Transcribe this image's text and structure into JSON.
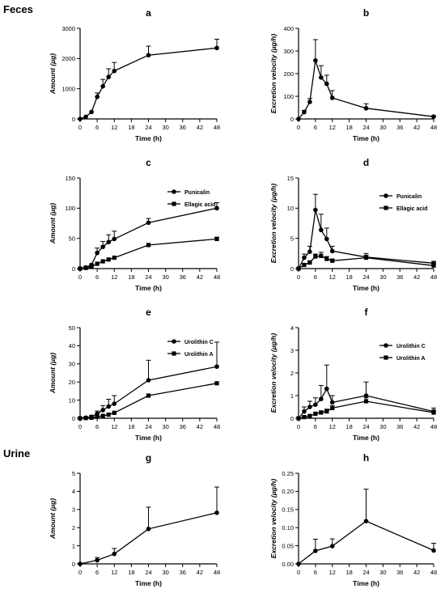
{
  "section_labels": {
    "feces": "Feces",
    "urine": "Urine"
  },
  "chart_data": [
    {
      "type": "line",
      "panel_label": "a",
      "xlabel": "Time (h)",
      "ylabel": "Amount (µg)",
      "xlim": [
        0,
        48
      ],
      "ylim": [
        0,
        3000
      ],
      "xticks": [
        0,
        6,
        12,
        18,
        24,
        30,
        36,
        42,
        48
      ],
      "yticks": [
        0,
        1000,
        2000,
        3000
      ],
      "series": [
        {
          "marker": "circle",
          "x": [
            0,
            2,
            4,
            6,
            8,
            10,
            12,
            24,
            48
          ],
          "y": [
            0,
            70,
            230,
            730,
            1080,
            1390,
            1590,
            2110,
            2350
          ],
          "err": [
            0,
            0,
            0,
            130,
            230,
            270,
            280,
            300,
            290
          ]
        }
      ]
    },
    {
      "type": "line",
      "panel_label": "b",
      "xlabel": "Time (h)",
      "ylabel": "Excretion velocity (µg/h)",
      "xlim": [
        0,
        48
      ],
      "ylim": [
        0,
        400
      ],
      "xticks": [
        0,
        6,
        12,
        18,
        24,
        30,
        36,
        42,
        48
      ],
      "yticks": [
        0,
        100,
        200,
        300,
        400
      ],
      "series": [
        {
          "marker": "circle",
          "x": [
            0,
            2,
            4,
            6,
            8,
            10,
            12,
            24,
            48
          ],
          "y": [
            0,
            30,
            75,
            258,
            183,
            155,
            93,
            47,
            10
          ],
          "err": [
            0,
            8,
            15,
            92,
            52,
            38,
            32,
            20,
            5
          ]
        }
      ]
    },
    {
      "type": "line",
      "panel_label": "c",
      "xlabel": "Time (h)",
      "ylabel": "Amount (µg)",
      "xlim": [
        0,
        48
      ],
      "ylim": [
        0,
        150
      ],
      "xticks": [
        0,
        6,
        12,
        18,
        24,
        30,
        36,
        42,
        48
      ],
      "yticks": [
        0,
        50,
        100,
        150
      ],
      "legend": "top-left",
      "series": [
        {
          "name": "Punicalin",
          "marker": "circle",
          "x": [
            0,
            2,
            4,
            6,
            8,
            10,
            12,
            24,
            48
          ],
          "y": [
            0,
            2,
            6,
            26,
            36,
            44,
            49,
            76,
            100
          ],
          "err": [
            0,
            1,
            2,
            8,
            9,
            12,
            13,
            7,
            9
          ]
        },
        {
          "name": "Ellagic acid",
          "marker": "square",
          "x": [
            0,
            2,
            4,
            6,
            8,
            10,
            12,
            24,
            48
          ],
          "y": [
            0,
            1,
            3,
            8,
            12,
            15,
            18,
            39,
            49
          ],
          "err": [
            0,
            0,
            0,
            0,
            0,
            0,
            0,
            0,
            3
          ]
        }
      ]
    },
    {
      "type": "line",
      "panel_label": "d",
      "xlabel": "Time (h)",
      "ylabel": "Excretion velocity (µg/h)",
      "xlim": [
        0,
        48
      ],
      "ylim": [
        0,
        15
      ],
      "xticks": [
        0,
        6,
        12,
        18,
        24,
        30,
        36,
        42,
        48
      ],
      "yticks": [
        0,
        5,
        10,
        15
      ],
      "legend": "top-right",
      "series": [
        {
          "name": "Punicalin",
          "marker": "circle",
          "x": [
            0,
            2,
            4,
            6,
            8,
            10,
            12,
            24,
            48
          ],
          "y": [
            0,
            1.8,
            2.8,
            9.7,
            6.4,
            4.9,
            2.9,
            1.9,
            0.9
          ],
          "err": [
            0,
            0.6,
            0.9,
            2.6,
            2.6,
            1.8,
            0.8,
            0.6,
            0.3
          ]
        },
        {
          "name": "Ellagic acid",
          "marker": "square",
          "x": [
            0,
            2,
            4,
            6,
            8,
            10,
            12,
            24,
            48
          ],
          "y": [
            0,
            0.6,
            1.0,
            2.0,
            2.1,
            1.6,
            1.3,
            1.8,
            0.5
          ],
          "err": [
            0,
            0.2,
            0.3,
            0.4,
            0.6,
            0.4,
            0.3,
            0.4,
            0.2
          ]
        }
      ]
    },
    {
      "type": "line",
      "panel_label": "e",
      "xlabel": "Time (h)",
      "ylabel": "Amount (µg)",
      "xlim": [
        0,
        48
      ],
      "ylim": [
        0,
        50
      ],
      "xticks": [
        0,
        6,
        12,
        18,
        24,
        30,
        36,
        42,
        48
      ],
      "yticks": [
        0,
        10,
        20,
        30,
        40,
        50
      ],
      "legend": "top-left",
      "series": [
        {
          "name": "Urolithin C",
          "marker": "circle",
          "x": [
            0,
            2,
            4,
            6,
            8,
            10,
            12,
            24,
            48
          ],
          "y": [
            0,
            0.3,
            0.8,
            2.5,
            4.5,
            6.5,
            8.0,
            21,
            28.5
          ],
          "err": [
            0,
            0.3,
            0.8,
            1.5,
            2.5,
            4.0,
            4.5,
            11,
            13.5
          ]
        },
        {
          "name": "Urolithin A",
          "marker": "square",
          "x": [
            0,
            2,
            4,
            6,
            8,
            10,
            12,
            24,
            48
          ],
          "y": [
            0,
            0.1,
            0.3,
            0.8,
            1.3,
            2.0,
            3.0,
            12.5,
            19.3
          ],
          "err": [
            0,
            0,
            0,
            0,
            0,
            0,
            0,
            0,
            0
          ]
        }
      ]
    },
    {
      "type": "line",
      "panel_label": "f",
      "xlabel": "Time (h)",
      "ylabel": "Excretion velocity (µg/h)",
      "xlim": [
        0,
        48
      ],
      "ylim": [
        0,
        4
      ],
      "xticks": [
        0,
        6,
        12,
        18,
        24,
        30,
        36,
        42,
        48
      ],
      "yticks": [
        0,
        1,
        2,
        3,
        4
      ],
      "legend": "top-right",
      "series": [
        {
          "name": "Urolithin C",
          "marker": "circle",
          "x": [
            0,
            2,
            4,
            6,
            8,
            10,
            12,
            24,
            48
          ],
          "y": [
            0,
            0.3,
            0.5,
            0.6,
            0.85,
            1.3,
            0.7,
            1.0,
            0.3
          ],
          "err": [
            0,
            0.2,
            0.25,
            0.3,
            0.6,
            1.05,
            0.3,
            0.6,
            0.15
          ]
        },
        {
          "name": "Urolithin A",
          "marker": "square",
          "x": [
            0,
            2,
            4,
            6,
            8,
            10,
            12,
            24,
            48
          ],
          "y": [
            0,
            0.05,
            0.1,
            0.2,
            0.25,
            0.3,
            0.45,
            0.75,
            0.25
          ],
          "err": [
            0,
            0.03,
            0.05,
            0.05,
            0.08,
            0.1,
            0.1,
            0.15,
            0.1
          ]
        }
      ]
    },
    {
      "type": "line",
      "panel_label": "g",
      "xlabel": "Time (h)",
      "ylabel": "Amount (µg)",
      "xlim": [
        0,
        48
      ],
      "ylim": [
        0,
        5
      ],
      "xticks": [
        0,
        6,
        12,
        18,
        24,
        30,
        36,
        42,
        48
      ],
      "yticks": [
        0,
        1,
        2,
        3,
        4,
        5
      ],
      "series": [
        {
          "marker": "circle",
          "x": [
            0,
            6,
            12,
            24,
            48
          ],
          "y": [
            0,
            0.2,
            0.55,
            1.93,
            2.82
          ],
          "err": [
            0,
            0.15,
            0.3,
            1.2,
            1.42
          ]
        }
      ]
    },
    {
      "type": "line",
      "panel_label": "h",
      "xlabel": "Time (h)",
      "ylabel": "Excretion velocity (µg/h)",
      "xlim": [
        0,
        48
      ],
      "ylim": [
        0,
        0.25
      ],
      "xticks": [
        0,
        6,
        12,
        18,
        24,
        30,
        36,
        42,
        48
      ],
      "yticks": [
        0.0,
        0.05,
        0.1,
        0.15,
        0.2,
        0.25
      ],
      "ytick_labels": [
        "0.00",
        "0.05",
        "0.10",
        "0.15",
        "0.20",
        "0.25"
      ],
      "series": [
        {
          "marker": "circle",
          "x": [
            0,
            6,
            12,
            24,
            48
          ],
          "y": [
            0,
            0.036,
            0.049,
            0.118,
            0.037
          ],
          "err": [
            0,
            0.032,
            0.02,
            0.088,
            0.02
          ]
        }
      ]
    }
  ]
}
